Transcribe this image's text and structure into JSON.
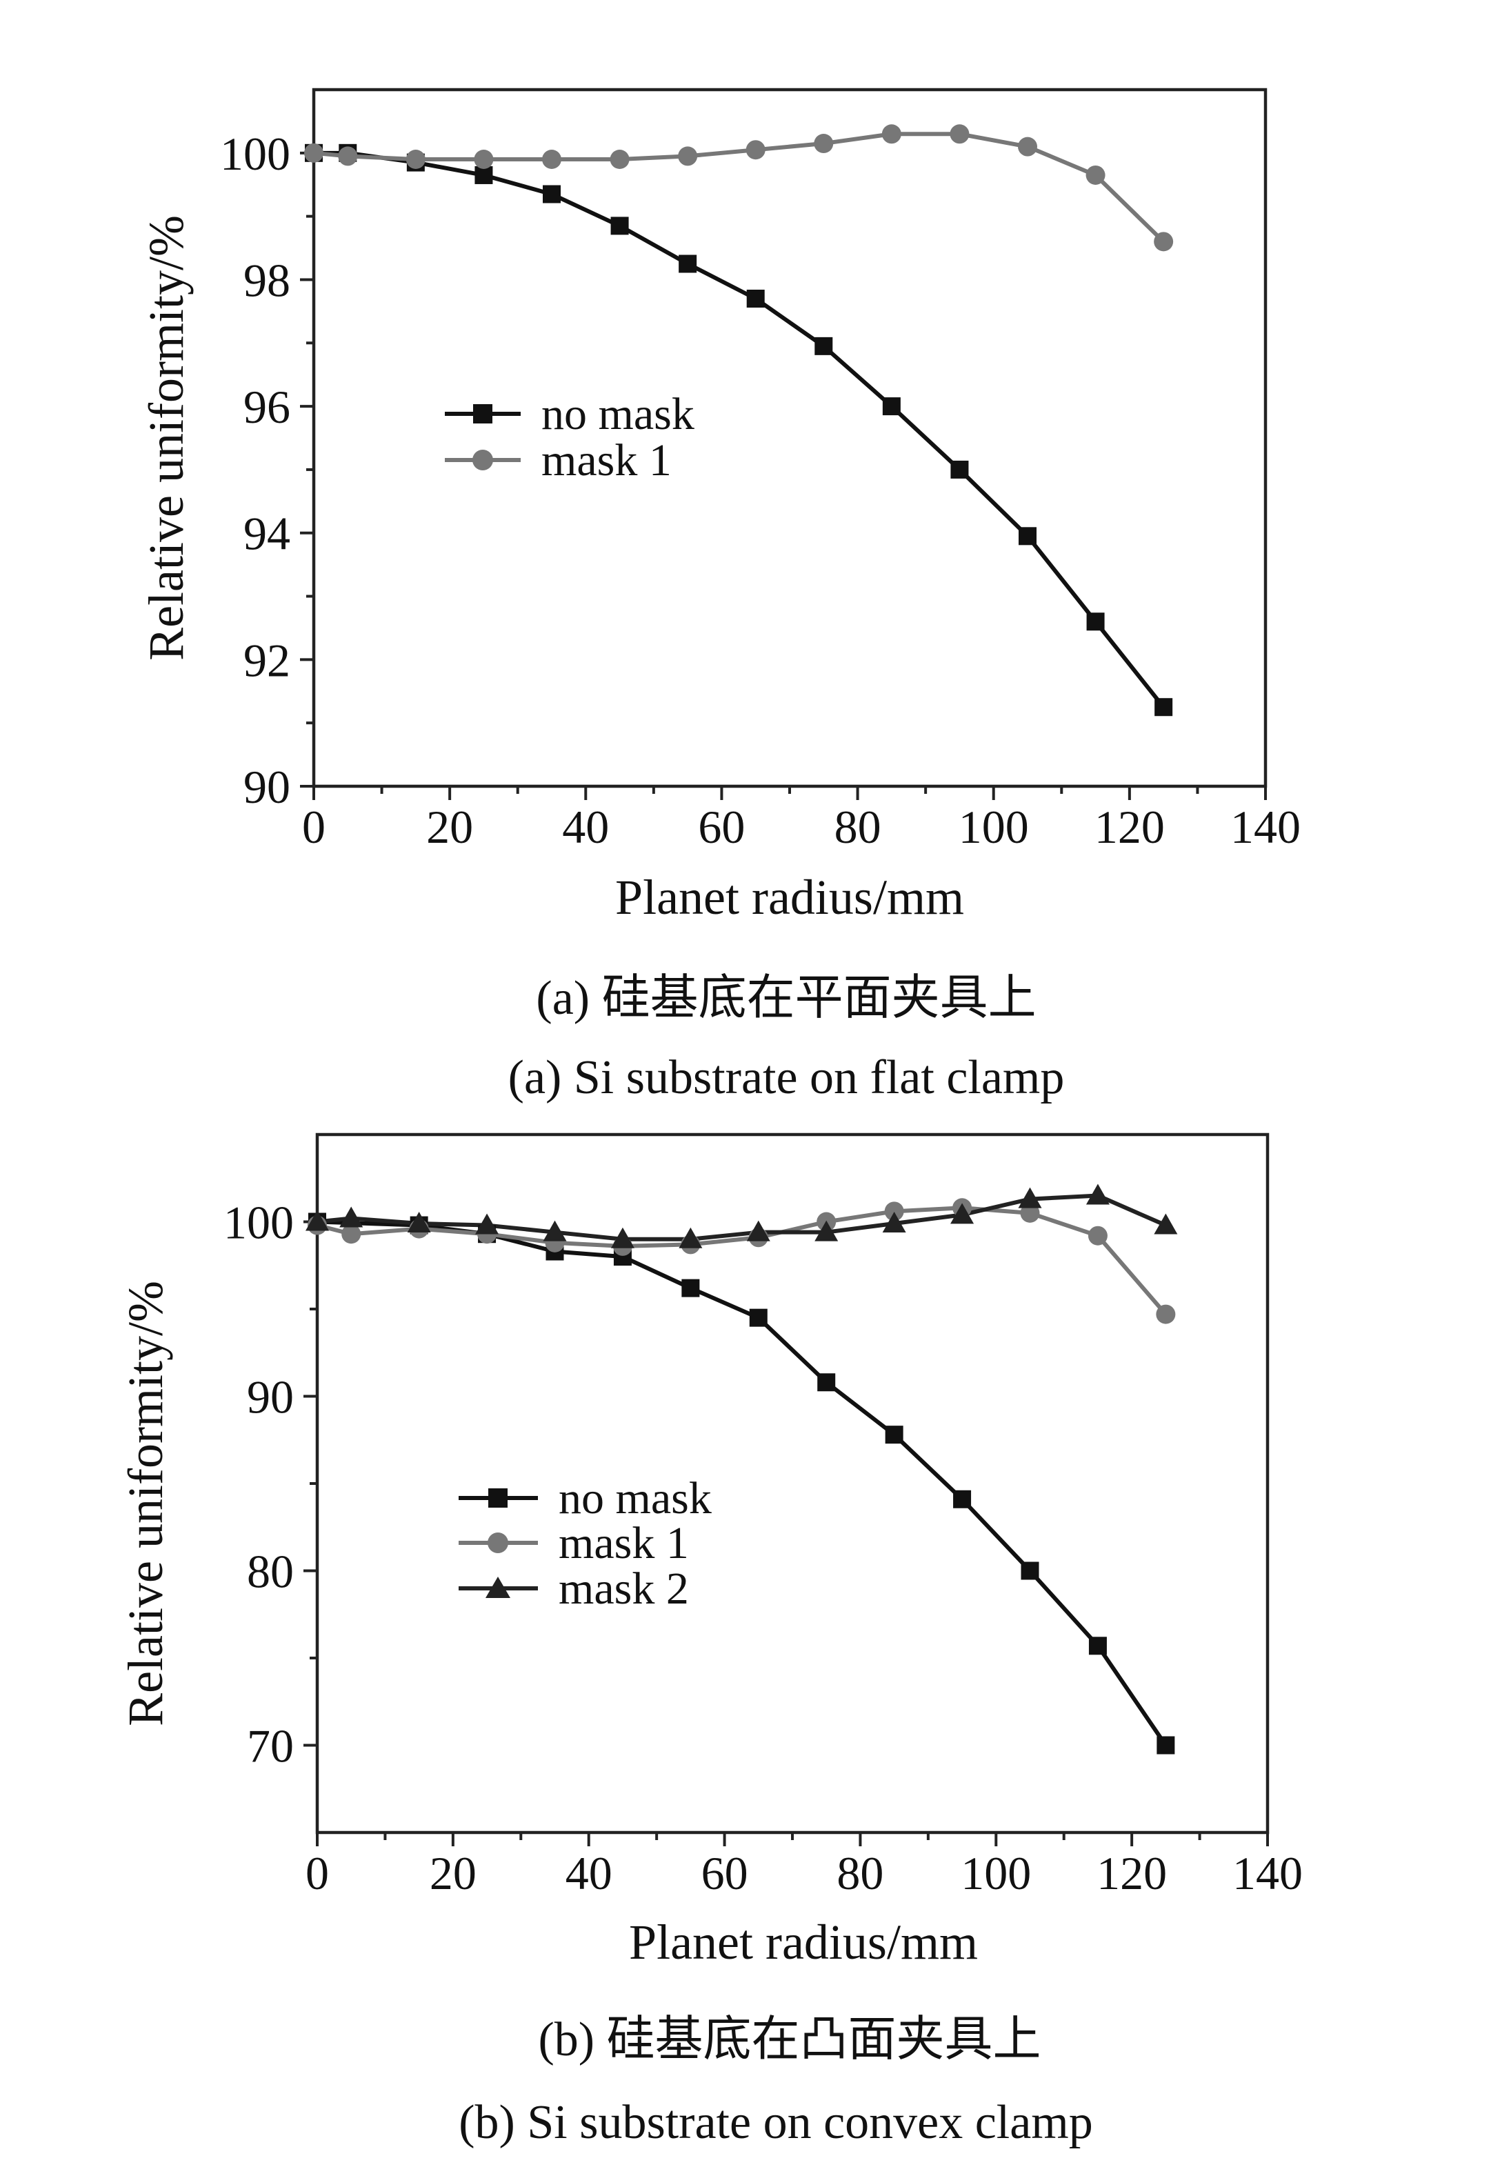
{
  "chart_data": [
    {
      "type": "line",
      "panel": "a",
      "xlabel": "Planet radius/mm",
      "ylabel": "Relative uniformity/%",
      "xlim": [
        0,
        140
      ],
      "ylim": [
        90,
        101
      ],
      "xticks": [
        0,
        20,
        40,
        60,
        80,
        100,
        120,
        140
      ],
      "yticks": [
        90,
        92,
        94,
        96,
        98,
        100
      ],
      "grid": false,
      "legend_position": "center-left",
      "caption_cn": "(a) 硅基底在平面夹具上",
      "caption_en": "(a) Si substrate on flat clamp",
      "series": [
        {
          "name": "no mask",
          "marker": "square",
          "color": "#111111",
          "x": [
            0,
            5,
            15,
            25,
            35,
            45,
            55,
            65,
            75,
            85,
            95,
            105,
            115,
            125
          ],
          "y": [
            100.0,
            100.0,
            99.85,
            99.65,
            99.35,
            98.85,
            98.25,
            97.7,
            96.95,
            96.0,
            95.0,
            93.95,
            92.6,
            91.25
          ]
        },
        {
          "name": "mask 1",
          "marker": "circle",
          "color": "#777777",
          "x": [
            0,
            5,
            15,
            25,
            35,
            45,
            55,
            65,
            75,
            85,
            95,
            105,
            115,
            125
          ],
          "y": [
            100.0,
            99.95,
            99.9,
            99.9,
            99.9,
            99.9,
            99.95,
            100.05,
            100.15,
            100.3,
            100.3,
            100.1,
            99.65,
            98.6
          ]
        }
      ]
    },
    {
      "type": "line",
      "panel": "b",
      "xlabel": "Planet radius/mm",
      "ylabel": "Relative uniformity/%",
      "xlim": [
        0,
        140
      ],
      "ylim": [
        65,
        105
      ],
      "xticks": [
        0,
        20,
        40,
        60,
        80,
        100,
        120,
        140
      ],
      "yticks": [
        70,
        80,
        90,
        100
      ],
      "grid": false,
      "legend_position": "center-left",
      "caption_cn": "(b) 硅基底在凸面夹具上",
      "caption_en": "(b) Si substrate on convex clamp",
      "series": [
        {
          "name": "no mask",
          "marker": "square",
          "color": "#111111",
          "x": [
            0,
            15,
            25,
            35,
            45,
            55,
            65,
            75,
            85,
            95,
            105,
            115,
            125
          ],
          "y": [
            100.0,
            99.8,
            99.3,
            98.3,
            98.0,
            96.2,
            94.5,
            90.8,
            87.8,
            84.1,
            80.0,
            75.7,
            70.0
          ]
        },
        {
          "name": "mask 1",
          "marker": "circle",
          "color": "#777777",
          "x": [
            0,
            5,
            15,
            25,
            35,
            45,
            55,
            65,
            75,
            85,
            95,
            105,
            115,
            125
          ],
          "y": [
            99.8,
            99.3,
            99.6,
            99.3,
            98.8,
            98.6,
            98.7,
            99.1,
            100.0,
            100.6,
            100.8,
            100.5,
            99.2,
            94.7
          ]
        },
        {
          "name": "mask 2",
          "marker": "triangle",
          "color": "#222222",
          "x": [
            0,
            5,
            15,
            25,
            35,
            45,
            55,
            65,
            75,
            85,
            95,
            105,
            115,
            125
          ],
          "y": [
            100.0,
            100.2,
            99.9,
            99.8,
            99.4,
            99.0,
            99.0,
            99.4,
            99.4,
            99.9,
            100.4,
            101.3,
            101.5,
            99.8
          ]
        }
      ]
    }
  ]
}
